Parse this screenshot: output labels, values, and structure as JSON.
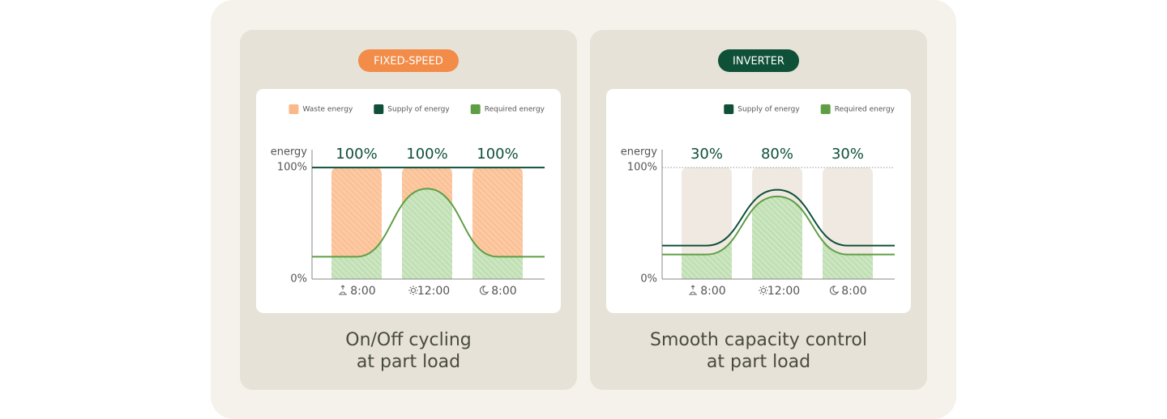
{
  "chart_data": [
    {
      "type": "line",
      "badge": "FIXED-SPEED",
      "badge_color": "#f28c48",
      "caption": [
        "On/Off cycling",
        "at part load"
      ],
      "ylabel": "energy",
      "ylim": [
        0,
        116
      ],
      "yticks": [
        {
          "value": 0,
          "label": "0%"
        },
        {
          "value": 100,
          "label": "100%"
        }
      ],
      "grid": true,
      "categories": [
        "8:00",
        "12:00",
        "8:00"
      ],
      "waste_legend": {
        "name": "Waste energy",
        "color": "#f9b98a"
      },
      "series": [
        {
          "name": "Supply of energy",
          "color": "#0f5038",
          "values": [
            100,
            100,
            100
          ],
          "value_labels": [
            "100%",
            "100%",
            "100%"
          ]
        },
        {
          "name": "Required energy",
          "color": "#5f9e45",
          "values": [
            20,
            81,
            20
          ]
        }
      ]
    },
    {
      "type": "line",
      "badge": "INVERTER",
      "badge_color": "#0f5038",
      "caption": [
        "Smooth capacity control",
        "at part load"
      ],
      "ylabel": "energy",
      "ylim": [
        0,
        116
      ],
      "yticks": [
        {
          "value": 0,
          "label": "0%"
        },
        {
          "value": 100,
          "label": "100%"
        }
      ],
      "grid": true,
      "categories": [
        "8:00",
        "12:00",
        "8:00"
      ],
      "series": [
        {
          "name": "Supply of energy",
          "color": "#0f5038",
          "values": [
            30,
            80,
            30
          ],
          "value_labels": [
            "30%",
            "80%",
            "30%"
          ]
        },
        {
          "name": "Required energy",
          "color": "#5f9e45",
          "values": [
            22,
            74,
            22
          ]
        }
      ]
    }
  ]
}
